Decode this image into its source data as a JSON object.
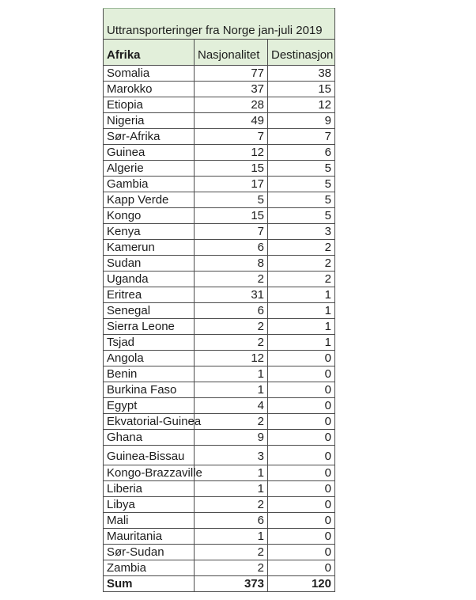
{
  "chart_data": {
    "type": "table",
    "title": "Uttransporteringer fra Norge jan-juli 2019",
    "columns": [
      "Afrika",
      "Nasjonalitet",
      "Destinasjon"
    ],
    "rows": [
      [
        "Somalia",
        77,
        38
      ],
      [
        "Marokko",
        37,
        15
      ],
      [
        "Etiopia",
        28,
        12
      ],
      [
        "Nigeria",
        49,
        9
      ],
      [
        "Sør-Afrika",
        7,
        7
      ],
      [
        "Guinea",
        12,
        6
      ],
      [
        "Algerie",
        15,
        5
      ],
      [
        "Gambia",
        17,
        5
      ],
      [
        "Kapp Verde",
        5,
        5
      ],
      [
        "Kongo",
        15,
        5
      ],
      [
        "Kenya",
        7,
        3
      ],
      [
        "Kamerun",
        6,
        2
      ],
      [
        "Sudan",
        8,
        2
      ],
      [
        "Uganda",
        2,
        2
      ],
      [
        "Eritrea",
        31,
        1
      ],
      [
        "Senegal",
        6,
        1
      ],
      [
        "Sierra Leone",
        2,
        1
      ],
      [
        "Tsjad",
        2,
        1
      ],
      [
        "Angola",
        12,
        0
      ],
      [
        "Benin",
        1,
        0
      ],
      [
        "Burkina Faso",
        1,
        0
      ],
      [
        "Egypt",
        4,
        0
      ],
      [
        "Ekvatorial-Guinea",
        2,
        0
      ],
      [
        "Ghana",
        9,
        0
      ],
      [
        "Guinea-Bissau",
        3,
        0
      ],
      [
        "Kongo-Brazzaville",
        1,
        0
      ],
      [
        "Liberia",
        1,
        0
      ],
      [
        "Libya",
        2,
        0
      ],
      [
        "Mali",
        6,
        0
      ],
      [
        "Mauritania",
        1,
        0
      ],
      [
        "Sør-Sudan",
        2,
        0
      ],
      [
        "Zambia",
        2,
        0
      ]
    ],
    "sum_row": [
      "Sum",
      373,
      120
    ],
    "layout": {
      "tall_row_index": 24,
      "grid": true,
      "header_fill": "#e2efda"
    }
  },
  "colors": {
    "header_fill": "#e2efda",
    "border": "#4d4d4d",
    "text": "#1d1d1d",
    "page_bg": "#ffffff"
  }
}
